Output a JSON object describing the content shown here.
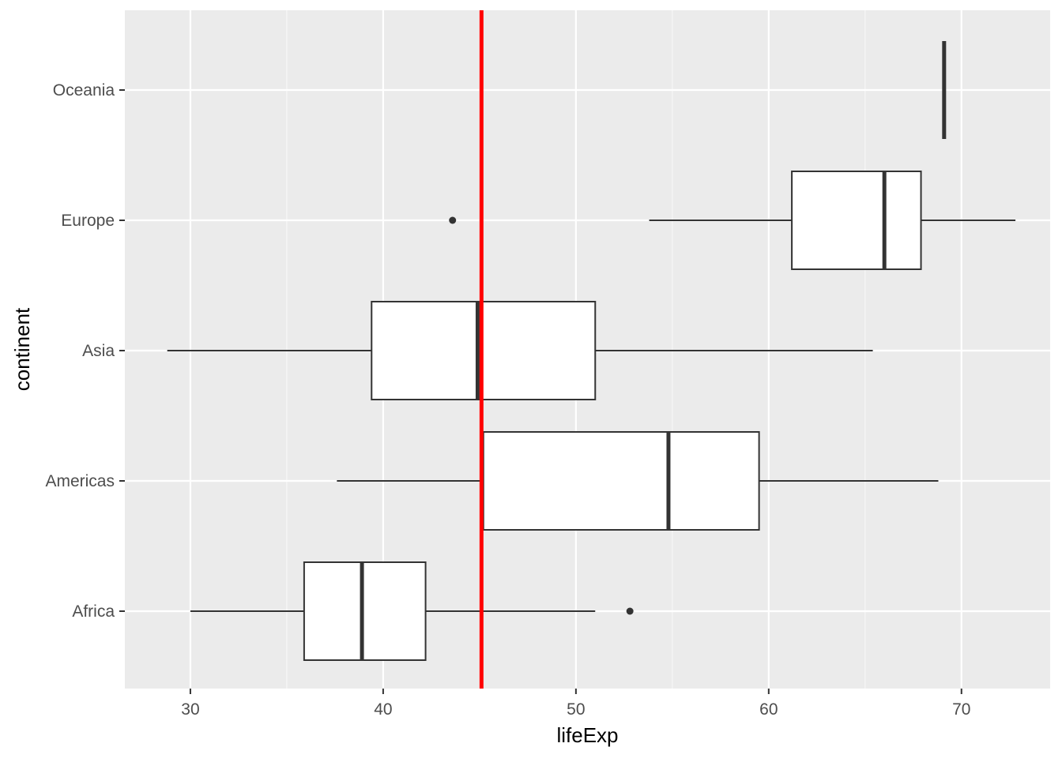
{
  "chart_data": {
    "type": "boxplot",
    "orientation": "horizontal",
    "xlabel": "lifeExp",
    "ylabel": "continent",
    "xlim": [
      26.6,
      74.6
    ],
    "x_ticks": [
      30,
      40,
      50,
      60,
      70
    ],
    "x_minor_ticks": [
      35,
      45,
      55,
      65
    ],
    "categories": [
      "Africa",
      "Americas",
      "Asia",
      "Europe",
      "Oceania"
    ],
    "boxes": [
      {
        "category": "Africa",
        "whisker_low": 30.0,
        "q1": 35.9,
        "median": 38.9,
        "q3": 42.2,
        "whisker_high": 51.0,
        "outliers": [
          52.8
        ]
      },
      {
        "category": "Americas",
        "whisker_low": 37.6,
        "q1": 45.2,
        "median": 54.8,
        "q3": 59.5,
        "whisker_high": 68.8,
        "outliers": []
      },
      {
        "category": "Asia",
        "whisker_low": 28.8,
        "q1": 39.4,
        "median": 44.9,
        "q3": 51.0,
        "whisker_high": 65.4,
        "outliers": []
      },
      {
        "category": "Europe",
        "whisker_low": 53.8,
        "q1": 61.2,
        "median": 66.0,
        "q3": 67.9,
        "whisker_high": 72.8,
        "outliers": [
          43.6
        ]
      },
      {
        "category": "Oceania",
        "whisker_low": 69.1,
        "q1": 69.1,
        "median": 69.1,
        "q3": 69.1,
        "whisker_high": 69.1,
        "outliers": []
      }
    ],
    "reference_line": {
      "orientation": "vertical",
      "x": 45.1,
      "color": "#ff0000"
    },
    "colors": {
      "panel_background": "#ebebeb",
      "grid_major": "#ffffff",
      "grid_minor": "#f7f7f7",
      "box_fill": "#ffffff",
      "box_stroke": "#333333",
      "tick_text": "#4d4d4d",
      "title_text": "#000000"
    },
    "grid": true,
    "legend": "none"
  }
}
